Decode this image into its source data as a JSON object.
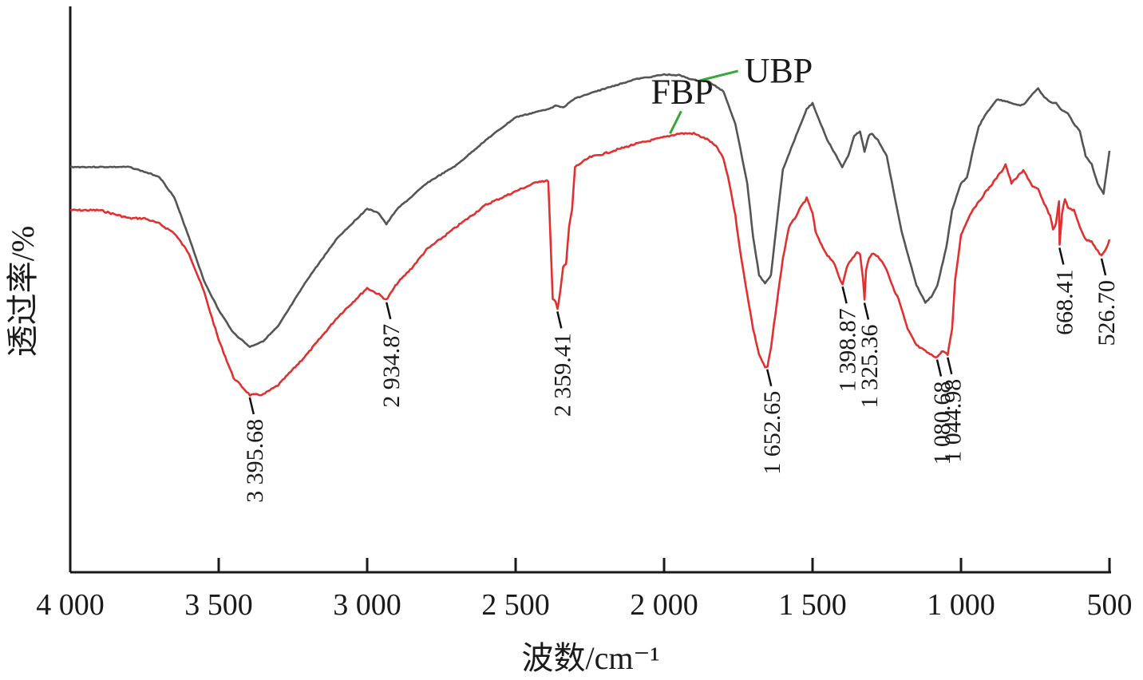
{
  "chart_data": {
    "type": "line",
    "xlabel": "波数/cm⁻¹",
    "ylabel": "透过率/%",
    "xlim": [
      4000,
      500
    ],
    "x_reversed": true,
    "x_ticks": [
      4000,
      3500,
      3000,
      2500,
      2000,
      1500,
      1000,
      500
    ],
    "x_tick_labels": [
      "4 000",
      "3 500",
      "3 000",
      "2 500",
      "2 000",
      "1 500",
      "1 000",
      "500"
    ],
    "ylim": [
      0,
      100
    ],
    "y_ticks_shown": false,
    "grid": false,
    "legend": "inline labels",
    "colors": {
      "UBP": "#555555",
      "FBP": "#e03030",
      "leader": "#3aa63a"
    },
    "series": [
      {
        "name": "UBP",
        "x": [
          4000,
          3900,
          3800,
          3700,
          3650,
          3600,
          3550,
          3500,
          3450,
          3395,
          3350,
          3300,
          3200,
          3100,
          3000,
          2960,
          2935,
          2900,
          2850,
          2800,
          2700,
          2600,
          2500,
          2400,
          2380,
          2360,
          2340,
          2300,
          2200,
          2100,
          2000,
          1950,
          1900,
          1850,
          1800,
          1760,
          1720,
          1700,
          1680,
          1660,
          1640,
          1620,
          1600,
          1550,
          1520,
          1500,
          1480,
          1450,
          1420,
          1400,
          1380,
          1360,
          1340,
          1325,
          1310,
          1300,
          1280,
          1250,
          1200,
          1150,
          1120,
          1100,
          1080,
          1050,
          1030,
          1000,
          980,
          960,
          940,
          920,
          900,
          880,
          850,
          800,
          780,
          760,
          740,
          720,
          700,
          680,
          660,
          640,
          620,
          600,
          580,
          560,
          540,
          520,
          500
        ],
        "y": [
          75.0,
          75.0,
          75.0,
          73.2,
          69.4,
          62.0,
          54.0,
          48.5,
          44.3,
          41.7,
          42.8,
          45.5,
          54.3,
          61.9,
          67.3,
          66.4,
          64.4,
          67.2,
          69.5,
          72.0,
          75.3,
          80.0,
          84.2,
          85.6,
          86.0,
          86.4,
          86.0,
          87.7,
          89.5,
          91.2,
          92.1,
          92.0,
          91.1,
          90.8,
          89.0,
          83.0,
          72.0,
          62.0,
          55.0,
          53.4,
          55.0,
          65.0,
          74.5,
          81.6,
          85.7,
          86.8,
          84.0,
          80.0,
          77.0,
          75.0,
          77.0,
          80.8,
          81.5,
          77.9,
          80.9,
          81.1,
          80.0,
          77.0,
          63.0,
          53.1,
          49.9,
          51.0,
          53.0,
          60.0,
          67.0,
          72.0,
          73.0,
          78.0,
          82.5,
          84.5,
          86.0,
          87.5,
          87.2,
          86.3,
          87.0,
          88.5,
          89.5,
          88.0,
          87.0,
          86.8,
          85.5,
          85.0,
          83.0,
          81.7,
          77.0,
          75.5,
          72.0,
          70.0,
          78.0
        ]
      },
      {
        "name": "FBP",
        "x": [
          4000,
          3900,
          3800,
          3750,
          3700,
          3650,
          3600,
          3550,
          3500,
          3450,
          3395,
          3350,
          3300,
          3200,
          3100,
          3000,
          2960,
          2935,
          2900,
          2850,
          2800,
          2700,
          2600,
          2500,
          2420,
          2390,
          2375,
          2365,
          2359,
          2350,
          2340,
          2330,
          2320,
          2310,
          2300,
          2250,
          2200,
          2100,
          2000,
          1950,
          1900,
          1850,
          1820,
          1800,
          1780,
          1760,
          1740,
          1720,
          1700,
          1680,
          1660,
          1652,
          1640,
          1620,
          1600,
          1580,
          1560,
          1540,
          1520,
          1500,
          1490,
          1470,
          1450,
          1430,
          1410,
          1399,
          1385,
          1370,
          1350,
          1340,
          1330,
          1325,
          1320,
          1310,
          1300,
          1280,
          1260,
          1250,
          1230,
          1210,
          1180,
          1150,
          1120,
          1100,
          1081,
          1070,
          1060,
          1045,
          1030,
          1020,
          1000,
          980,
          960,
          940,
          920,
          900,
          880,
          860,
          850,
          830,
          810,
          790,
          780,
          760,
          740,
          720,
          700,
          690,
          680,
          670,
          668,
          660,
          650,
          640,
          620,
          600,
          580,
          560,
          540,
          527,
          510,
          500
        ],
        "y": [
          67.0,
          67.0,
          65.5,
          65.5,
          64.5,
          62.8,
          59.0,
          52.0,
          43.0,
          36.0,
          32.8,
          32.9,
          34.6,
          40.5,
          47.2,
          52.6,
          51.4,
          50.4,
          53.4,
          56.3,
          59.7,
          63.9,
          68.0,
          70.5,
          72.4,
          72.4,
          50.5,
          50.0,
          48.7,
          52.0,
          56.5,
          57.0,
          64.0,
          67.0,
          75.0,
          76.8,
          77.5,
          79.2,
          80.5,
          81.2,
          81.2,
          80.0,
          78.5,
          76.5,
          72.0,
          66.0,
          58.0,
          51.5,
          45.0,
          40.3,
          37.9,
          38.0,
          41.5,
          50.0,
          58.0,
          63.8,
          65.5,
          67.5,
          69.2,
          66.5,
          63.0,
          60.5,
          58.7,
          57.5,
          54.5,
          53.3,
          56.5,
          57.8,
          59.2,
          58.8,
          54.5,
          50.3,
          55.8,
          58.2,
          59.0,
          58.5,
          57.0,
          56.0,
          52.8,
          50.5,
          45.0,
          42.0,
          40.9,
          40.2,
          39.8,
          40.5,
          41.0,
          40.2,
          45.0,
          54.0,
          62.4,
          65.0,
          67.2,
          68.5,
          70.2,
          71.5,
          73.0,
          74.5,
          75.5,
          72.0,
          73.2,
          74.3,
          73.5,
          71.5,
          70.8,
          68.2,
          66.0,
          63.5,
          64.5,
          68.8,
          60.5,
          66.4,
          69.0,
          67.5,
          67.0,
          64.0,
          61.5,
          61.3,
          59.5,
          58.5,
          60.0,
          61.6
        ]
      }
    ],
    "series_labels": [
      {
        "series": "UBP",
        "text": "UBP",
        "x": 1880,
        "y": 91.0
      },
      {
        "series": "FBP",
        "text": "FBP",
        "x": 1980,
        "y": 81.2
      }
    ],
    "annotations": [
      {
        "text": "3 395.68",
        "x": 3395.68,
        "y": 32.8
      },
      {
        "text": "2 934.87",
        "x": 2934.87,
        "y": 50.4
      },
      {
        "text": "2 359.41",
        "x": 2359.41,
        "y": 48.7
      },
      {
        "text": "1 652.65",
        "x": 1652.65,
        "y": 38.0
      },
      {
        "text": "1 398.87",
        "x": 1398.87,
        "y": 53.3
      },
      {
        "text": "1 325.36",
        "x": 1325.36,
        "y": 50.3
      },
      {
        "text": "1 080.68",
        "x": 1080.68,
        "y": 39.8
      },
      {
        "text": "1 044.98",
        "x": 1044.98,
        "y": 40.2
      },
      {
        "text": "668.41",
        "x": 668.41,
        "y": 60.5
      },
      {
        "text": "526.70",
        "x": 526.7,
        "y": 58.5
      }
    ]
  }
}
